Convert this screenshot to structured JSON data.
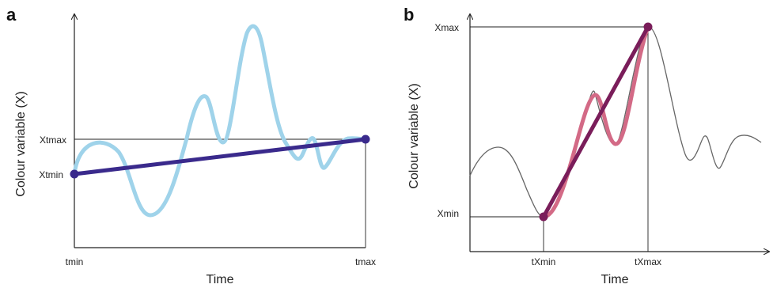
{
  "panel_a": {
    "letter": "a",
    "y_axis_title": "Colour variable (X)",
    "x_axis_title": "Time",
    "y_labels": {
      "xtmax": "Xtmax",
      "xtmin": "Xtmin"
    },
    "x_labels": {
      "tmin": "tmin",
      "tmax": "tmax"
    }
  },
  "panel_b": {
    "letter": "b",
    "y_axis_title": "Colour variable (X)",
    "x_axis_title": "Time",
    "y_labels": {
      "xmax": "Xmax",
      "xmin": "Xmin"
    },
    "x_labels": {
      "txmin": "tXmin",
      "txmax": "tXmax"
    }
  },
  "colors": {
    "series_light_blue": "#9fd3ea",
    "trend_line": "#3a2a8c",
    "grey_series": "#666666",
    "pink_series": "#d36a86",
    "purple_line": "#7a1d5a",
    "axis": "#222222"
  }
}
